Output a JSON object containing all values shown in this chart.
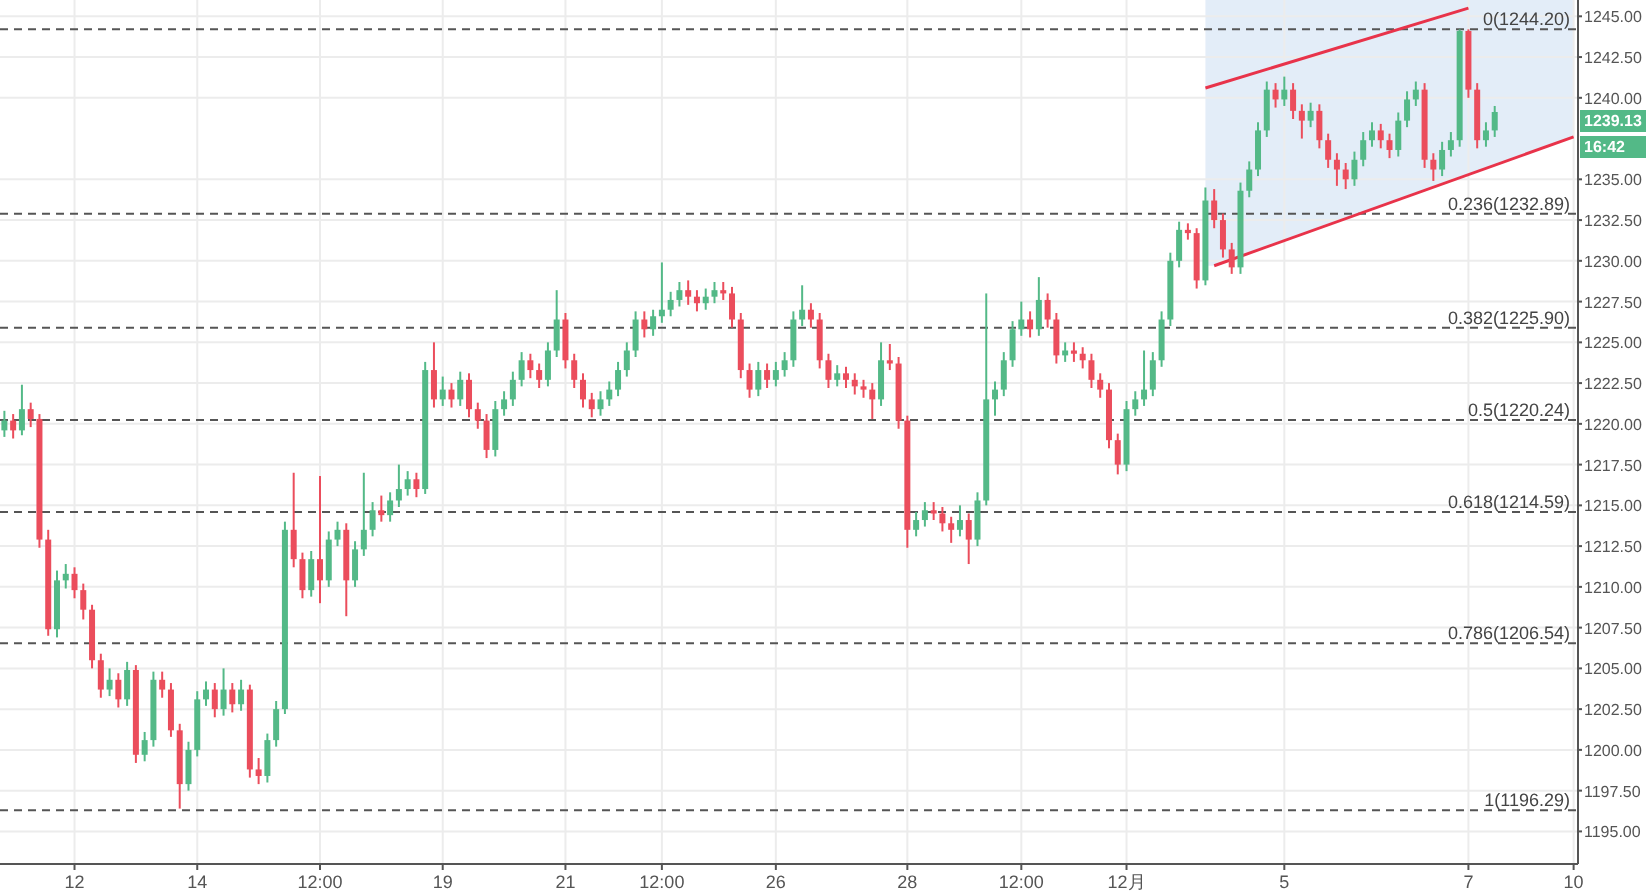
{
  "chart_data": {
    "type": "candlestick",
    "categories": [
      null,
      null,
      null,
      null,
      null,
      null,
      null,
      null,
      "12",
      null,
      null,
      null,
      null,
      null,
      null,
      null,
      null,
      null,
      null,
      null,
      null,
      null,
      "14",
      null,
      null,
      null,
      null,
      null,
      null,
      null,
      null,
      null,
      null,
      null,
      null,
      null,
      "12:00",
      null,
      null,
      null,
      null,
      null,
      null,
      null,
      null,
      null,
      null,
      null,
      null,
      null,
      "19",
      null,
      null,
      null,
      null,
      null,
      null,
      null,
      null,
      null,
      null,
      null,
      null,
      null,
      "21",
      null,
      null,
      null,
      null,
      null,
      null,
      null,
      null,
      null,
      null,
      "12:00",
      null,
      null,
      null,
      null,
      null,
      null,
      null,
      null,
      null,
      null,
      null,
      null,
      "26",
      null,
      null,
      null,
      null,
      null,
      null,
      null,
      null,
      null,
      null,
      null,
      null,
      null,
      null,
      "28",
      null,
      null,
      null,
      null,
      null,
      null,
      null,
      null,
      null,
      null,
      null,
      null,
      "12:00",
      null,
      null,
      null,
      null,
      null,
      null,
      null,
      null,
      null,
      null,
      null,
      "12月",
      null,
      null,
      null,
      null,
      null,
      null,
      null,
      null,
      null,
      null,
      null,
      null,
      null,
      null,
      null,
      null,
      null,
      "5",
      null,
      null,
      null,
      null,
      null,
      null,
      null,
      null,
      null,
      null,
      null,
      null,
      null,
      null,
      null,
      null,
      null,
      null,
      null,
      null,
      "7",
      null,
      null,
      null,
      null,
      null,
      null,
      null,
      null,
      null,
      null,
      null,
      "10"
    ],
    "ohlc": [
      [
        1219.6,
        1220.8,
        1219.2,
        1220.2
      ],
      [
        1220.2,
        1220.6,
        1219.1,
        1219.6
      ],
      [
        1219.6,
        1222.4,
        1219.3,
        1220.9
      ],
      [
        1220.9,
        1221.3,
        1219.8,
        1220.3
      ],
      [
        1220.3,
        1220.6,
        1212.4,
        1212.9
      ],
      [
        1212.9,
        1213.5,
        1207.0,
        1207.4
      ],
      [
        1207.4,
        1211.0,
        1206.9,
        1210.4
      ],
      [
        1210.4,
        1211.4,
        1209.9,
        1210.8
      ],
      [
        1210.8,
        1211.2,
        1209.3,
        1209.8
      ],
      [
        1209.8,
        1210.2,
        1208.0,
        1208.6
      ],
      [
        1208.6,
        1208.9,
        1205.0,
        1205.5
      ],
      [
        1205.5,
        1205.9,
        1203.2,
        1203.7
      ],
      [
        1203.7,
        1205.0,
        1203.3,
        1204.3
      ],
      [
        1204.3,
        1204.7,
        1202.6,
        1203.1
      ],
      [
        1203.1,
        1205.4,
        1202.7,
        1204.9
      ],
      [
        1204.9,
        1205.2,
        1199.2,
        1199.7
      ],
      [
        1199.7,
        1201.1,
        1199.3,
        1200.6
      ],
      [
        1200.6,
        1204.8,
        1200.2,
        1204.3
      ],
      [
        1204.3,
        1204.8,
        1203.2,
        1203.7
      ],
      [
        1203.7,
        1204.1,
        1200.8,
        1201.2
      ],
      [
        1201.2,
        1201.6,
        1196.4,
        1197.9
      ],
      [
        1197.9,
        1200.5,
        1197.5,
        1200.0
      ],
      [
        1200.0,
        1203.6,
        1199.6,
        1203.1
      ],
      [
        1203.1,
        1204.2,
        1202.7,
        1203.7
      ],
      [
        1203.7,
        1204.1,
        1202.0,
        1202.5
      ],
      [
        1202.5,
        1205.0,
        1202.1,
        1203.7
      ],
      [
        1203.7,
        1204.1,
        1202.3,
        1202.8
      ],
      [
        1202.8,
        1204.3,
        1202.4,
        1203.7
      ],
      [
        1203.7,
        1204.0,
        1198.3,
        1198.8
      ],
      [
        1198.8,
        1199.5,
        1197.9,
        1198.4
      ],
      [
        1198.4,
        1201.0,
        1198.0,
        1200.6
      ],
      [
        1200.6,
        1203.0,
        1200.2,
        1202.5
      ],
      [
        1202.5,
        1214.0,
        1202.2,
        1213.5
      ],
      [
        1213.5,
        1217.0,
        1211.2,
        1211.7
      ],
      [
        1211.7,
        1212.1,
        1209.3,
        1209.8
      ],
      [
        1209.8,
        1212.2,
        1209.4,
        1211.7
      ],
      [
        1211.7,
        1216.8,
        1209.0,
        1210.4
      ],
      [
        1210.4,
        1213.4,
        1210.0,
        1212.9
      ],
      [
        1212.9,
        1214.0,
        1212.5,
        1213.5
      ],
      [
        1213.5,
        1213.9,
        1208.2,
        1210.4
      ],
      [
        1210.4,
        1212.8,
        1210.0,
        1212.3
      ],
      [
        1212.3,
        1217.0,
        1211.9,
        1213.5
      ],
      [
        1213.5,
        1215.2,
        1213.1,
        1214.7
      ],
      [
        1214.7,
        1215.6,
        1214.0,
        1214.4
      ],
      [
        1214.4,
        1215.8,
        1214.0,
        1215.3
      ],
      [
        1215.3,
        1217.5,
        1214.9,
        1216.0
      ],
      [
        1216.0,
        1217.1,
        1215.6,
        1216.6
      ],
      [
        1216.6,
        1217.0,
        1215.5,
        1216.0
      ],
      [
        1216.0,
        1223.8,
        1215.7,
        1223.3
      ],
      [
        1223.3,
        1225.0,
        1221.0,
        1221.5
      ],
      [
        1221.5,
        1222.9,
        1221.1,
        1222.1
      ],
      [
        1222.1,
        1222.5,
        1221.0,
        1221.5
      ],
      [
        1221.5,
        1223.2,
        1221.1,
        1222.7
      ],
      [
        1222.7,
        1223.1,
        1220.4,
        1220.9
      ],
      [
        1220.9,
        1221.3,
        1219.7,
        1220.2
      ],
      [
        1220.2,
        1220.6,
        1217.9,
        1218.4
      ],
      [
        1218.4,
        1221.4,
        1218.0,
        1220.9
      ],
      [
        1220.9,
        1222.0,
        1220.5,
        1221.5
      ],
      [
        1221.5,
        1223.2,
        1221.1,
        1222.7
      ],
      [
        1222.7,
        1224.4,
        1222.3,
        1223.9
      ],
      [
        1223.9,
        1224.3,
        1222.8,
        1223.3
      ],
      [
        1223.3,
        1223.7,
        1222.2,
        1222.7
      ],
      [
        1222.7,
        1225.0,
        1222.3,
        1224.5
      ],
      [
        1224.5,
        1228.2,
        1224.1,
        1226.4
      ],
      [
        1226.4,
        1226.8,
        1223.4,
        1223.9
      ],
      [
        1223.9,
        1224.3,
        1222.2,
        1222.7
      ],
      [
        1222.7,
        1223.1,
        1221.0,
        1221.5
      ],
      [
        1221.5,
        1221.9,
        1220.4,
        1220.9
      ],
      [
        1220.9,
        1222.0,
        1220.5,
        1221.5
      ],
      [
        1221.5,
        1222.6,
        1221.1,
        1222.1
      ],
      [
        1222.1,
        1223.8,
        1221.7,
        1223.3
      ],
      [
        1223.3,
        1225.0,
        1222.9,
        1224.5
      ],
      [
        1224.5,
        1226.9,
        1224.1,
        1226.4
      ],
      [
        1226.4,
        1226.9,
        1225.3,
        1225.8
      ],
      [
        1225.8,
        1227.0,
        1225.4,
        1226.6
      ],
      [
        1226.6,
        1229.9,
        1226.2,
        1227.0
      ],
      [
        1227.0,
        1228.1,
        1226.6,
        1227.6
      ],
      [
        1227.6,
        1228.7,
        1227.2,
        1228.2
      ],
      [
        1228.2,
        1228.8,
        1227.3,
        1227.8
      ],
      [
        1227.8,
        1228.2,
        1226.9,
        1227.4
      ],
      [
        1227.4,
        1228.3,
        1227.0,
        1227.8
      ],
      [
        1227.8,
        1228.7,
        1227.4,
        1228.2
      ],
      [
        1228.2,
        1228.7,
        1227.6,
        1228.0
      ],
      [
        1228.0,
        1228.4,
        1225.9,
        1226.4
      ],
      [
        1226.4,
        1226.8,
        1222.8,
        1223.3
      ],
      [
        1223.3,
        1223.7,
        1221.6,
        1222.1
      ],
      [
        1222.1,
        1223.8,
        1221.7,
        1223.3
      ],
      [
        1223.3,
        1223.7,
        1222.2,
        1222.7
      ],
      [
        1222.7,
        1223.8,
        1222.3,
        1223.3
      ],
      [
        1223.3,
        1224.4,
        1222.9,
        1223.9
      ],
      [
        1223.9,
        1226.9,
        1223.5,
        1226.4
      ],
      [
        1226.4,
        1228.5,
        1226.0,
        1227.0
      ],
      [
        1227.0,
        1227.4,
        1225.9,
        1226.4
      ],
      [
        1226.4,
        1226.8,
        1223.4,
        1223.9
      ],
      [
        1223.9,
        1224.3,
        1222.2,
        1222.7
      ],
      [
        1222.7,
        1223.6,
        1222.3,
        1223.1
      ],
      [
        1223.1,
        1223.5,
        1222.2,
        1222.7
      ],
      [
        1222.7,
        1223.1,
        1221.8,
        1222.3
      ],
      [
        1222.3,
        1222.7,
        1221.6,
        1222.1
      ],
      [
        1222.1,
        1222.5,
        1220.3,
        1221.5
      ],
      [
        1221.5,
        1225.0,
        1221.1,
        1223.9
      ],
      [
        1223.9,
        1224.9,
        1223.3,
        1223.7
      ],
      [
        1223.7,
        1224.1,
        1219.7,
        1220.2
      ],
      [
        1220.2,
        1220.5,
        1212.4,
        1213.5
      ],
      [
        1213.5,
        1214.6,
        1213.1,
        1214.1
      ],
      [
        1214.1,
        1215.2,
        1213.7,
        1214.7
      ],
      [
        1214.7,
        1215.2,
        1214.1,
        1214.5
      ],
      [
        1214.5,
        1214.9,
        1213.4,
        1213.9
      ],
      [
        1213.9,
        1214.3,
        1212.7,
        1213.5
      ],
      [
        1213.5,
        1215.0,
        1213.1,
        1214.1
      ],
      [
        1214.1,
        1214.5,
        1211.4,
        1212.9
      ],
      [
        1212.9,
        1215.8,
        1212.5,
        1215.3
      ],
      [
        1215.3,
        1228.0,
        1215.0,
        1221.5
      ],
      [
        1221.5,
        1222.6,
        1220.5,
        1222.1
      ],
      [
        1222.1,
        1224.4,
        1221.7,
        1223.9
      ],
      [
        1223.9,
        1226.3,
        1223.5,
        1225.8
      ],
      [
        1225.8,
        1227.5,
        1225.4,
        1226.4
      ],
      [
        1226.4,
        1226.9,
        1225.3,
        1225.8
      ],
      [
        1225.8,
        1229.0,
        1225.4,
        1227.6
      ],
      [
        1227.6,
        1228.0,
        1225.9,
        1226.4
      ],
      [
        1226.4,
        1226.8,
        1223.7,
        1224.2
      ],
      [
        1224.2,
        1225.0,
        1223.8,
        1224.5
      ],
      [
        1224.5,
        1225.0,
        1223.8,
        1224.3
      ],
      [
        1224.3,
        1224.7,
        1223.4,
        1223.9
      ],
      [
        1223.9,
        1224.3,
        1222.2,
        1222.7
      ],
      [
        1222.7,
        1223.1,
        1221.6,
        1222.1
      ],
      [
        1222.1,
        1222.5,
        1218.5,
        1219.0
      ],
      [
        1219.0,
        1219.4,
        1216.9,
        1217.5
      ],
      [
        1217.5,
        1221.4,
        1217.1,
        1220.9
      ],
      [
        1220.9,
        1222.0,
        1220.5,
        1221.5
      ],
      [
        1221.5,
        1224.5,
        1221.1,
        1222.1
      ],
      [
        1222.1,
        1224.4,
        1221.7,
        1223.9
      ],
      [
        1223.9,
        1226.9,
        1223.5,
        1226.4
      ],
      [
        1226.4,
        1230.5,
        1226.0,
        1230.0
      ],
      [
        1230.0,
        1232.4,
        1229.6,
        1231.9
      ],
      [
        1231.9,
        1232.3,
        1231.3,
        1231.7
      ],
      [
        1231.7,
        1232.0,
        1228.3,
        1228.8
      ],
      [
        1228.8,
        1234.5,
        1228.5,
        1233.7
      ],
      [
        1233.7,
        1234.4,
        1232.0,
        1232.5
      ],
      [
        1232.5,
        1232.9,
        1230.2,
        1230.7
      ],
      [
        1230.7,
        1231.1,
        1229.2,
        1229.6
      ],
      [
        1229.6,
        1234.8,
        1229.2,
        1234.3
      ],
      [
        1234.3,
        1236.1,
        1233.9,
        1235.6
      ],
      [
        1235.6,
        1238.5,
        1235.2,
        1238.0
      ],
      [
        1238.0,
        1241.0,
        1237.6,
        1240.5
      ],
      [
        1240.5,
        1240.9,
        1239.4,
        1239.9
      ],
      [
        1239.9,
        1241.3,
        1239.5,
        1240.5
      ],
      [
        1240.5,
        1240.9,
        1238.7,
        1239.2
      ],
      [
        1239.2,
        1239.6,
        1237.5,
        1238.6
      ],
      [
        1238.6,
        1239.7,
        1238.2,
        1239.2
      ],
      [
        1239.2,
        1239.6,
        1236.9,
        1237.4
      ],
      [
        1237.4,
        1237.8,
        1235.7,
        1236.2
      ],
      [
        1236.2,
        1236.6,
        1234.6,
        1235.6
      ],
      [
        1235.6,
        1236.0,
        1234.4,
        1235.0
      ],
      [
        1235.0,
        1236.7,
        1234.6,
        1236.2
      ],
      [
        1236.2,
        1237.9,
        1235.8,
        1237.4
      ],
      [
        1237.4,
        1238.5,
        1237.0,
        1238.0
      ],
      [
        1238.0,
        1238.4,
        1236.9,
        1237.4
      ],
      [
        1237.4,
        1237.8,
        1236.3,
        1236.8
      ],
      [
        1236.8,
        1239.1,
        1236.4,
        1238.6
      ],
      [
        1238.6,
        1240.4,
        1238.2,
        1239.9
      ],
      [
        1239.9,
        1241.0,
        1239.5,
        1240.5
      ],
      [
        1240.5,
        1240.9,
        1235.7,
        1236.2
      ],
      [
        1236.2,
        1236.6,
        1234.9,
        1235.6
      ],
      [
        1235.6,
        1237.3,
        1235.2,
        1236.8
      ],
      [
        1236.8,
        1237.9,
        1236.4,
        1237.4
      ],
      [
        1237.4,
        1244.2,
        1237.0,
        1244.1
      ],
      [
        1244.1,
        1244.2,
        1240.0,
        1240.5
      ],
      [
        1240.5,
        1240.9,
        1236.9,
        1237.4
      ],
      [
        1237.4,
        1238.5,
        1237.0,
        1238.0
      ],
      [
        1238.0,
        1239.5,
        1237.6,
        1239.13
      ],
      null,
      null,
      null,
      null,
      null,
      null,
      null,
      null,
      null
    ],
    "colors": [
      "#53b987",
      "#eb4d5c",
      "#53b987",
      "#eb4d5c",
      "#eb4d5c",
      "#eb4d5c",
      "#53b987",
      "#53b987",
      "#eb4d5c",
      "#eb4d5c",
      "#eb4d5c",
      "#eb4d5c",
      "#53b987",
      "#eb4d5c",
      "#53b987",
      "#eb4d5c",
      "#53b987",
      "#53b987",
      "#eb4d5c",
      "#eb4d5c",
      "#eb4d5c",
      "#53b987",
      "#53b987",
      "#53b987",
      "#eb4d5c",
      "#53b987",
      "#eb4d5c",
      "#53b987",
      "#eb4d5c",
      "#eb4d5c",
      "#53b987",
      "#53b987",
      "#53b987",
      "#eb4d5c",
      "#eb4d5c",
      "#53b987",
      "#eb4d5c",
      "#53b987",
      "#53b987",
      "#eb4d5c",
      "#53b987",
      "#53b987",
      "#53b987",
      "#eb4d5c",
      "#53b987",
      "#53b987",
      "#53b987",
      "#eb4d5c",
      "#53b987",
      "#eb4d5c",
      "#53b987",
      "#eb4d5c",
      "#53b987",
      "#eb4d5c",
      "#eb4d5c",
      "#eb4d5c",
      "#53b987",
      "#53b987",
      "#53b987",
      "#53b987",
      "#eb4d5c",
      "#eb4d5c",
      "#53b987",
      "#53b987",
      "#eb4d5c",
      "#eb4d5c",
      "#eb4d5c",
      "#eb4d5c",
      "#53b987",
      "#53b987",
      "#53b987",
      "#53b987",
      "#53b987",
      "#eb4d5c",
      "#53b987",
      "#53b987",
      "#53b987",
      "#53b987",
      "#eb4d5c",
      "#eb4d5c",
      "#53b987",
      "#53b987",
      "#eb4d5c",
      "#eb4d5c",
      "#eb4d5c",
      "#eb4d5c",
      "#53b987",
      "#eb4d5c",
      "#53b987",
      "#53b987",
      "#53b987",
      "#53b987",
      "#eb4d5c",
      "#eb4d5c",
      "#eb4d5c",
      "#53b987",
      "#eb4d5c",
      "#eb4d5c",
      "#eb4d5c",
      "#eb4d5c",
      "#53b987",
      "#eb4d5c",
      "#eb4d5c",
      "#eb4d5c",
      "#53b987",
      "#53b987",
      "#eb4d5c",
      "#eb4d5c",
      "#eb4d5c",
      "#53b987",
      "#eb4d5c",
      "#53b987",
      "#53b987",
      "#53b987",
      "#53b987",
      "#53b987",
      "#53b987",
      "#eb4d5c",
      "#53b987",
      "#eb4d5c",
      "#eb4d5c",
      "#53b987",
      "#eb4d5c",
      "#eb4d5c",
      "#eb4d5c",
      "#eb4d5c",
      "#eb4d5c",
      "#eb4d5c",
      "#53b987",
      "#53b987",
      "#53b987",
      "#53b987",
      "#53b987",
      "#53b987",
      "#53b987",
      "#eb4d5c",
      "#eb4d5c",
      "#53b987",
      "#eb4d5c",
      "#eb4d5c",
      "#eb4d5c",
      "#53b987",
      "#53b987",
      "#53b987",
      "#53b987",
      "#eb4d5c",
      "#53b987",
      "#eb4d5c",
      "#eb4d5c",
      "#53b987",
      "#eb4d5c",
      "#eb4d5c",
      "#eb4d5c",
      "#eb4d5c",
      "#53b987",
      "#53b987",
      "#53b987",
      "#eb4d5c",
      "#eb4d5c",
      "#53b987",
      "#53b987",
      "#53b987",
      "#eb4d5c",
      "#eb4d5c",
      "#53b987",
      "#53b987",
      "#53b987",
      "#eb4d5c",
      "#eb4d5c",
      "#53b987",
      "#53b987",
      null,
      null,
      null,
      null,
      null,
      null,
      null,
      null,
      null
    ],
    "series": [
      {
        "type": "line",
        "color": "#e8334a",
        "values": [
          null,
          null,
          null,
          null,
          null,
          null,
          null,
          null,
          null,
          null,
          null,
          null,
          null,
          null,
          null,
          null,
          null,
          null,
          null,
          null,
          null,
          null,
          null,
          null,
          null,
          null,
          null,
          null,
          null,
          null,
          null,
          null,
          null,
          null,
          null,
          null,
          null,
          null,
          null,
          null,
          null,
          null,
          null,
          null,
          null,
          null,
          null,
          null,
          null,
          null,
          null,
          null,
          null,
          null,
          null,
          null,
          null,
          null,
          null,
          null,
          null,
          null,
          null,
          null,
          null,
          null,
          null,
          null,
          null,
          null,
          null,
          null,
          null,
          null,
          null,
          null,
          null,
          null,
          null,
          null,
          null,
          null,
          null,
          null,
          null,
          null,
          null,
          null,
          null,
          null,
          null,
          null,
          null,
          null,
          null,
          null,
          null,
          null,
          null,
          null,
          null,
          null,
          null,
          null,
          null,
          null,
          null,
          null,
          null,
          null,
          null,
          null,
          null,
          null,
          null,
          null,
          null,
          null,
          null,
          null,
          null,
          null,
          null,
          null,
          null,
          null,
          null,
          null,
          null,
          null,
          null,
          null,
          null,
          null,
          null,
          null,
          null,
          1240.6,
          null,
          null,
          null,
          null,
          null,
          null,
          null,
          null,
          null,
          null,
          null,
          null,
          null,
          null,
          null,
          null,
          null,
          null,
          null,
          null,
          null,
          null,
          null,
          null,
          null,
          null,
          null,
          null,
          null,
          1245.5,
          null,
          null,
          null,
          null,
          null,
          null,
          null,
          null,
          null,
          null,
          null,
          null
        ]
      },
      {
        "type": "line",
        "color": "#e8334a",
        "values": [
          null,
          null,
          null,
          null,
          null,
          null,
          null,
          null,
          null,
          null,
          null,
          null,
          null,
          null,
          null,
          null,
          null,
          null,
          null,
          null,
          null,
          null,
          null,
          null,
          null,
          null,
          null,
          null,
          null,
          null,
          null,
          null,
          null,
          null,
          null,
          null,
          null,
          null,
          null,
          null,
          null,
          null,
          null,
          null,
          null,
          null,
          null,
          null,
          null,
          null,
          null,
          null,
          null,
          null,
          null,
          null,
          null,
          null,
          null,
          null,
          null,
          null,
          null,
          null,
          null,
          null,
          null,
          null,
          null,
          null,
          null,
          null,
          null,
          null,
          null,
          null,
          null,
          null,
          null,
          null,
          null,
          null,
          null,
          null,
          null,
          null,
          null,
          null,
          null,
          null,
          null,
          null,
          null,
          null,
          null,
          null,
          null,
          null,
          null,
          null,
          null,
          null,
          null,
          null,
          null,
          null,
          null,
          null,
          null,
          null,
          null,
          null,
          null,
          null,
          null,
          null,
          null,
          null,
          null,
          null,
          null,
          null,
          null,
          null,
          null,
          null,
          null,
          null,
          null,
          null,
          null,
          null,
          null,
          null,
          null,
          null,
          null,
          null,
          1229.7,
          null,
          null,
          null,
          null,
          null,
          null,
          null,
          null,
          null,
          null,
          null,
          null,
          null,
          null,
          null,
          null,
          null,
          null,
          null,
          null,
          null,
          null,
          null,
          null,
          null,
          null,
          null,
          null,
          null,
          null,
          null,
          null,
          null,
          null,
          null,
          null,
          null,
          null,
          null,
          null,
          1237.6
        ]
      }
    ],
    "ylim": [
      1193,
      1246
    ],
    "yticks": [
      {
        "value": 1195,
        "label": "1195.00"
      },
      {
        "value": 1197.5,
        "label": "1197.50"
      },
      {
        "value": 1200,
        "label": "1200.00"
      },
      {
        "value": 1202.5,
        "label": "1202.50"
      },
      {
        "value": 1205,
        "label": "1205.00"
      },
      {
        "value": 1207.5,
        "label": "1207.50"
      },
      {
        "value": 1210,
        "label": "1210.00"
      },
      {
        "value": 1212.5,
        "label": "1212.50"
      },
      {
        "value": 1215,
        "label": "1215.00"
      },
      {
        "value": 1217.5,
        "label": "1217.50"
      },
      {
        "value": 1220,
        "label": "1220.00"
      },
      {
        "value": 1222.5,
        "label": "1222.50"
      },
      {
        "value": 1225,
        "label": "1225.00"
      },
      {
        "value": 1227.5,
        "label": "1227.50"
      },
      {
        "value": 1230,
        "label": "1230.00"
      },
      {
        "value": 1232.5,
        "label": "1232.50"
      },
      {
        "value": 1235,
        "label": "1235.00"
      },
      {
        "value": 1240,
        "label": "1240.00"
      },
      {
        "value": 1242.5,
        "label": "1242.50"
      },
      {
        "value": 1245,
        "label": "1245.00"
      }
    ],
    "grid": true,
    "ref_lines": [
      {
        "axis": "y",
        "value": 1244.2,
        "label": "0(1244.20)",
        "color": "#555555",
        "line_style": "dashed"
      },
      {
        "axis": "y",
        "value": 1232.89,
        "label": "0.236(1232.89)",
        "color": "#555555",
        "line_style": "dashed"
      },
      {
        "axis": "y",
        "value": 1225.9,
        "label": "0.382(1225.90)",
        "color": "#555555",
        "line_style": "dashed"
      },
      {
        "axis": "y",
        "value": 1220.24,
        "label": "0.5(1220.24)",
        "color": "#555555",
        "line_style": "dashed"
      },
      {
        "axis": "y",
        "value": 1214.59,
        "label": "0.618(1214.59)",
        "color": "#555555",
        "line_style": "dashed"
      },
      {
        "axis": "y",
        "value": 1206.54,
        "label": "0.786(1206.54)",
        "color": "#555555",
        "line_style": "dashed"
      },
      {
        "axis": "y",
        "value": 1196.29,
        "label": "1(1196.29)",
        "color": "#555555",
        "line_style": "dashed"
      }
    ],
    "annotations": [
      "1239.13",
      "16:42"
    ]
  }
}
